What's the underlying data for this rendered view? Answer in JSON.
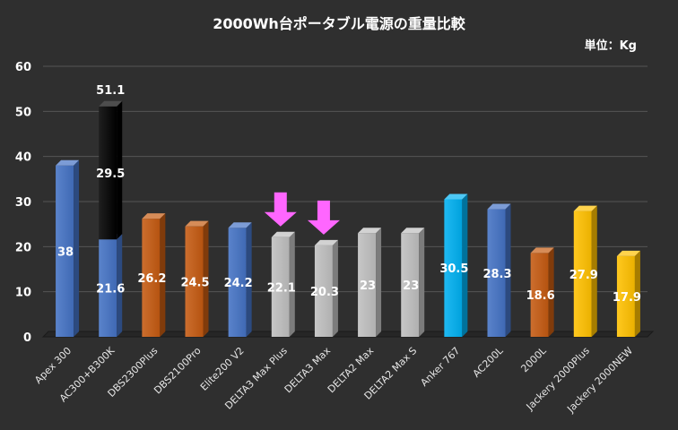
{
  "chart_data": {
    "type": "bar",
    "title": "2000Wh台ポータブル電源の重量比較",
    "unit_label": "単位：Kg",
    "ylim": [
      0,
      60
    ],
    "yticks": [
      0,
      10,
      20,
      30,
      40,
      50,
      60
    ],
    "grid": true,
    "categories": [
      "Apex 300",
      "AC300+B300K",
      "DBS2300Plus",
      "DBS2100Pro",
      "Elite200 V2",
      "DELTA3 Max Plus",
      "DELTA3 Max",
      "DELTA2 Max",
      "DELTA2 Max S",
      "Anker 767",
      "AC200L",
      "2000L",
      "Jackery 2000Plus",
      "Jackery 2000NEW"
    ],
    "values": [
      38,
      51.1,
      26.2,
      24.5,
      24.2,
      22.1,
      20.3,
      23,
      23,
      30.5,
      28.3,
      18.6,
      27.9,
      17.9
    ],
    "value_labels": [
      "38",
      "51.1",
      "26.2",
      "24.5",
      "24.2",
      "22.1",
      "20.3",
      "23",
      "23",
      "30.5",
      "28.3",
      "18.6",
      "27.9",
      "17.9"
    ],
    "stacked_bar": {
      "category": "AC300+B300K",
      "lower": 21.6,
      "lower_label": "21.6",
      "upper": 29.5,
      "upper_label": "29.5"
    },
    "bar_colors": [
      "#4472c4",
      "#4472c4",
      "#c55a11",
      "#c55a11",
      "#4472c4",
      "#bfbfbf",
      "#bfbfbf",
      "#bfbfbf",
      "#bfbfbf",
      "#00b0f0",
      "#4472c4",
      "#c55a11",
      "#ffc000",
      "#ffc000"
    ],
    "highlight_arrows": [
      "DELTA3 Max Plus",
      "DELTA3 Max"
    ],
    "arrow_color": "#ff66ff"
  }
}
